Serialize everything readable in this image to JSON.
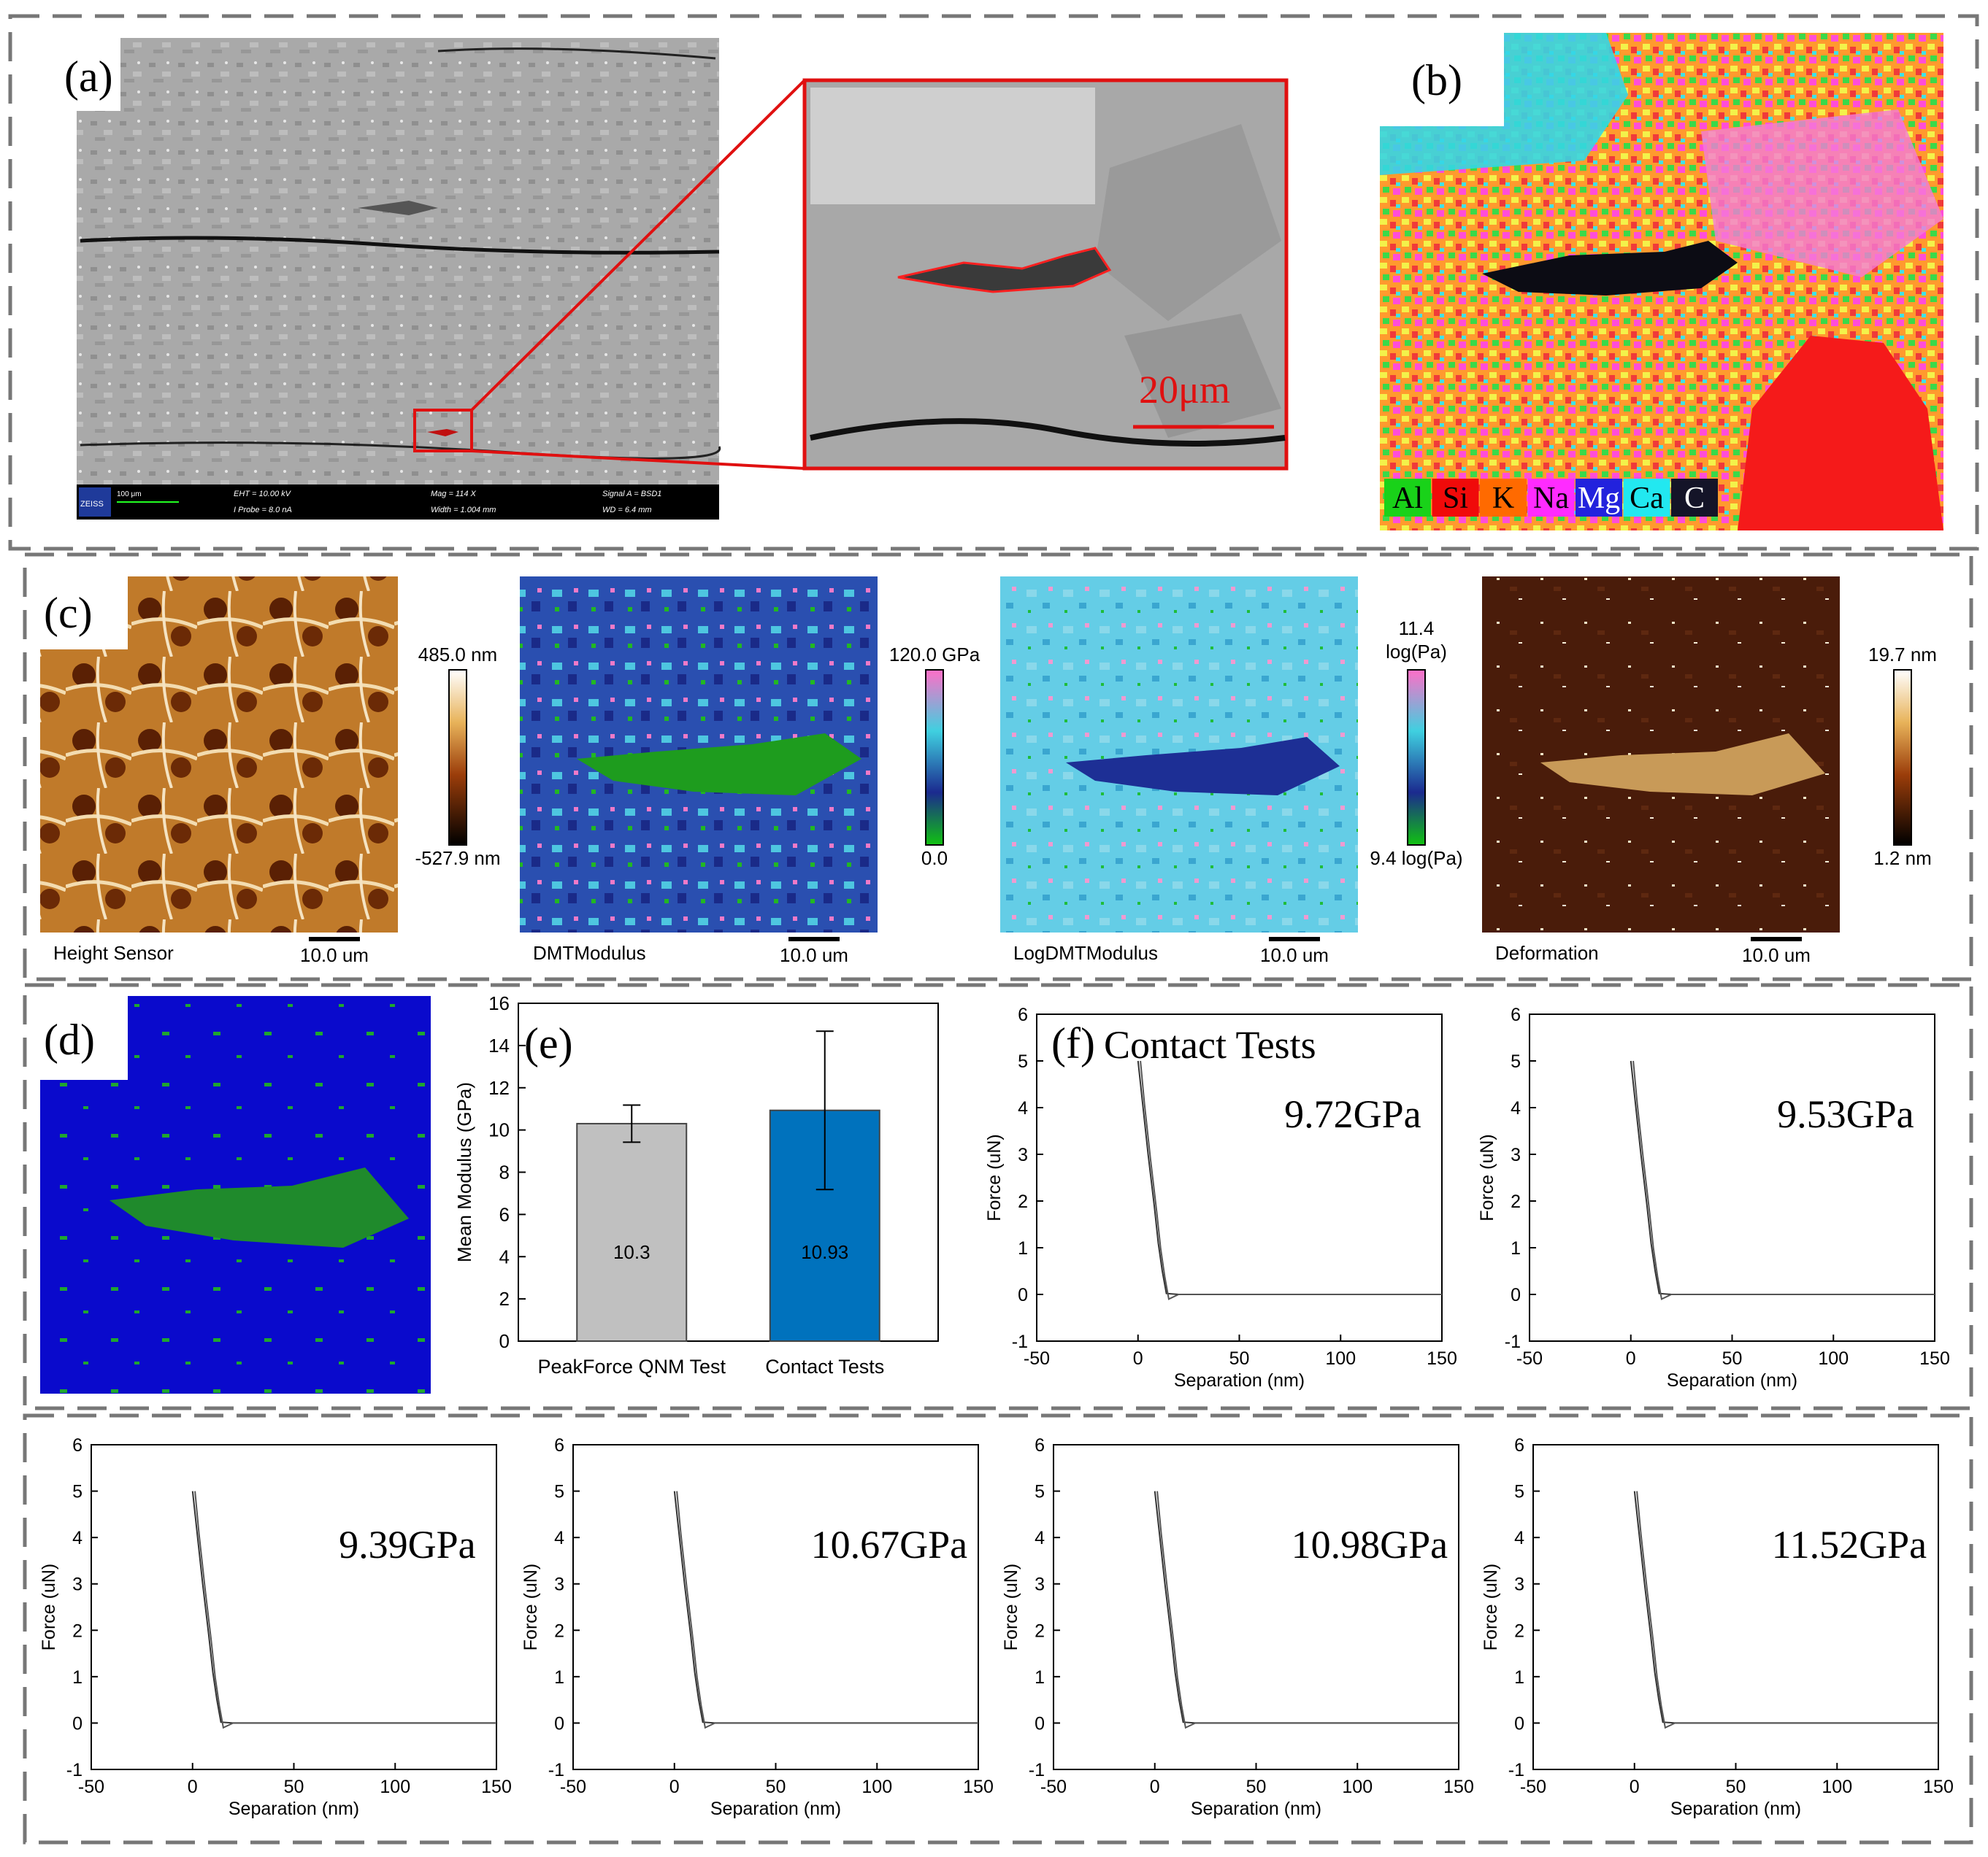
{
  "panels": {
    "a": {
      "letter": "(a)",
      "scale_bar": "20μm",
      "sem_info": {
        "brand": "ZEISS",
        "scale": "100 μm",
        "eht": "EHT = 10.00 kV",
        "probe": "I Probe = 8.0 nA",
        "mag": "Mag = 114 X",
        "width": "Width = 1.004 mm",
        "signal": "Signal A = BSD1",
        "wd": "WD = 6.4 mm"
      }
    },
    "b": {
      "letter": "(b)",
      "legend": [
        {
          "label": "Al",
          "color": "#19d219",
          "text_color": "#000000"
        },
        {
          "label": "Si",
          "color": "#f00a0a",
          "text_color": "#000000"
        },
        {
          "label": "K",
          "color": "#ff6a00",
          "text_color": "#000000"
        },
        {
          "label": "Na",
          "color": "#ff2bff",
          "text_color": "#000000"
        },
        {
          "label": "Mg",
          "color": "#2222dd",
          "text_color": "#ffffff"
        },
        {
          "label": "Ca",
          "color": "#22e8f0",
          "text_color": "#000000"
        },
        {
          "label": "C",
          "color": "#141428",
          "text_color": "#ffffff"
        }
      ]
    },
    "c": {
      "letter": "(c)",
      "maps": [
        {
          "title": "Height Sensor",
          "scale": "10.0 um",
          "max": "485.0 nm",
          "min": "-527.9 nm",
          "cmap": "height"
        },
        {
          "title": "DMTModulus",
          "scale": "10.0 um",
          "max": "120.0 GPa",
          "min": "0.0",
          "cmap": "modulus"
        },
        {
          "title": "LogDMTModulus",
          "scale": "10.0 um",
          "max": "11.4\nlog(Pa)",
          "max_line1": "11.4",
          "max_line2": "log(Pa)",
          "min": "9.4 log(Pa)",
          "cmap": "modulus"
        },
        {
          "title": "Deformation",
          "scale": "10.0 um",
          "max": "19.7 nm",
          "min": "1.2 nm",
          "cmap": "height"
        }
      ]
    },
    "d": {
      "letter": "(d)"
    },
    "e": {
      "letter": "(e)"
    },
    "f": {
      "letter": "(f)",
      "title": "Contact Tests"
    }
  },
  "chart_data": [
    {
      "id": "e",
      "type": "bar",
      "categories": [
        "PeakForce QNM Test",
        "Contact Tests"
      ],
      "values": [
        10.3,
        10.93
      ],
      "value_labels": [
        "10.3",
        "10.93"
      ],
      "errors": [
        0.88,
        3.75
      ],
      "colors": [
        "#c0c0c0",
        "#0072bd"
      ],
      "title": "",
      "xlabel": "",
      "ylabel": "Mean Modulus (GPa)",
      "ylim": [
        0,
        16
      ],
      "yticks": [
        "0",
        "2",
        "4",
        "6",
        "8",
        "10",
        "12",
        "14",
        "16"
      ]
    },
    {
      "id": "f1",
      "type": "line",
      "annotation": "9.72GPa",
      "xlabel": "Separation (nm)",
      "ylabel": "Force (uN)",
      "xlim": [
        -50,
        150
      ],
      "ylim": [
        -1,
        6
      ],
      "xticks": [
        "-50",
        "0",
        "50",
        "100",
        "150"
      ],
      "yticks": [
        "-1",
        "0",
        "1",
        "2",
        "3",
        "4",
        "5",
        "6"
      ],
      "x": [
        0,
        2,
        5,
        8,
        10,
        12,
        14,
        20,
        50,
        100,
        150
      ],
      "y": [
        5.0,
        4.2,
        3.0,
        1.9,
        1.1,
        0.5,
        0.02,
        0.0,
        0.0,
        0.0,
        0.0
      ]
    },
    {
      "id": "f2",
      "type": "line",
      "annotation": "9.53GPa",
      "xlabel": "Separation (nm)",
      "ylabel": "Force (uN)",
      "xlim": [
        -50,
        150
      ],
      "ylim": [
        -1,
        6
      ],
      "xticks": [
        "-50",
        "0",
        "50",
        "100",
        "150"
      ],
      "yticks": [
        "-1",
        "0",
        "1",
        "2",
        "3",
        "4",
        "5",
        "6"
      ],
      "x": [
        0,
        2,
        5,
        8,
        10,
        12,
        14,
        20,
        50,
        100,
        150
      ],
      "y": [
        5.0,
        4.2,
        3.0,
        1.9,
        1.1,
        0.5,
        0.02,
        0.0,
        0.0,
        0.0,
        0.0
      ]
    },
    {
      "id": "f3",
      "type": "line",
      "annotation": "9.39GPa",
      "xlabel": "Separation (nm)",
      "ylabel": "Force (uN)",
      "xlim": [
        -50,
        150
      ],
      "ylim": [
        -1,
        6
      ],
      "xticks": [
        "-50",
        "0",
        "50",
        "100",
        "150"
      ],
      "yticks": [
        "-1",
        "0",
        "1",
        "2",
        "3",
        "4",
        "5",
        "6"
      ],
      "x": [
        0,
        2,
        5,
        8,
        10,
        12,
        14,
        20,
        50,
        100,
        150
      ],
      "y": [
        5.0,
        4.2,
        3.0,
        1.9,
        1.1,
        0.5,
        0.02,
        0.0,
        0.0,
        0.0,
        0.0
      ]
    },
    {
      "id": "f4",
      "type": "line",
      "annotation": "10.67GPa",
      "xlabel": "Separation (nm)",
      "ylabel": "Force (uN)",
      "xlim": [
        -50,
        150
      ],
      "ylim": [
        -1,
        6
      ],
      "xticks": [
        "-50",
        "0",
        "50",
        "100",
        "150"
      ],
      "yticks": [
        "-1",
        "0",
        "1",
        "2",
        "3",
        "4",
        "5",
        "6"
      ],
      "x": [
        0,
        2,
        5,
        8,
        10,
        12,
        14,
        20,
        50,
        100,
        150
      ],
      "y": [
        5.0,
        4.2,
        3.0,
        1.9,
        1.1,
        0.5,
        0.02,
        0.0,
        0.0,
        0.0,
        0.0
      ]
    },
    {
      "id": "f5",
      "type": "line",
      "annotation": "10.98GPa",
      "xlabel": "Separation (nm)",
      "ylabel": "Force (uN)",
      "xlim": [
        -50,
        150
      ],
      "ylim": [
        -1,
        6
      ],
      "xticks": [
        "-50",
        "0",
        "50",
        "100",
        "150"
      ],
      "yticks": [
        "-1",
        "0",
        "1",
        "2",
        "3",
        "4",
        "5",
        "6"
      ],
      "x": [
        0,
        2,
        5,
        8,
        10,
        12,
        14,
        20,
        50,
        100,
        150
      ],
      "y": [
        5.0,
        4.2,
        3.0,
        1.9,
        1.1,
        0.5,
        0.02,
        0.0,
        0.0,
        0.0,
        0.0
      ]
    },
    {
      "id": "f6",
      "type": "line",
      "annotation": "11.52GPa",
      "xlabel": "Separation (nm)",
      "ylabel": "Force (uN)",
      "xlim": [
        -50,
        150
      ],
      "ylim": [
        -1,
        6
      ],
      "xticks": [
        "-50",
        "0",
        "50",
        "100",
        "150"
      ],
      "yticks": [
        "-1",
        "0",
        "1",
        "2",
        "3",
        "4",
        "5",
        "6"
      ],
      "x": [
        0,
        2,
        5,
        8,
        10,
        12,
        14,
        20,
        50,
        100,
        150
      ],
      "y": [
        5.0,
        4.2,
        3.0,
        1.9,
        1.1,
        0.5,
        0.02,
        0.0,
        0.0,
        0.0,
        0.0
      ]
    }
  ]
}
